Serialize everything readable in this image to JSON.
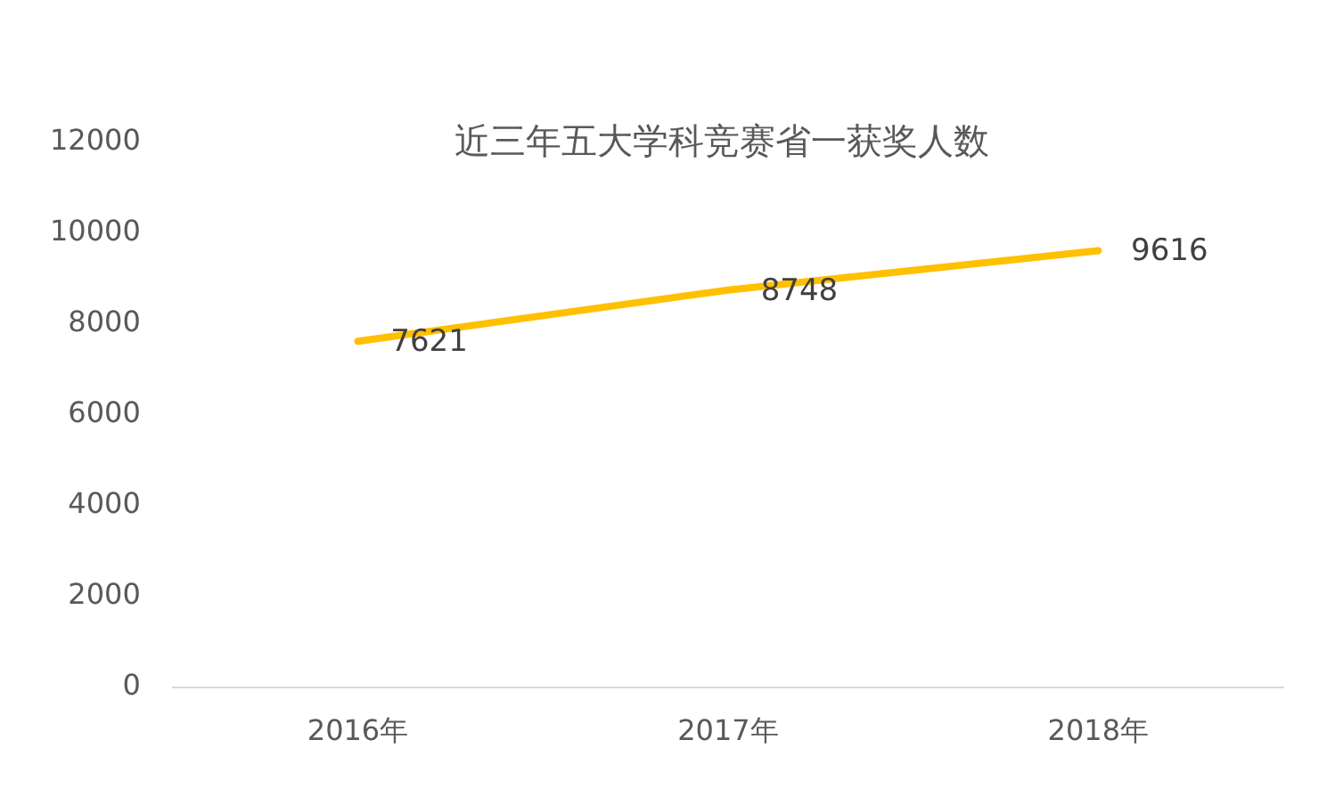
{
  "chart_data": {
    "type": "line",
    "title": "近三年五大学科竞赛省一获奖人数",
    "categories": [
      "2016年",
      "2017年",
      "2018年"
    ],
    "series": [
      {
        "color": "#ffc000",
        "values": [
          7621,
          8748,
          9616
        ]
      }
    ],
    "ylim": [
      0,
      12000
    ],
    "yticks": [
      0,
      2000,
      4000,
      6000,
      8000,
      10000,
      12000
    ],
    "grid": false,
    "legend": false,
    "marker": "none",
    "line_style": "solid",
    "data_labels": true
  }
}
